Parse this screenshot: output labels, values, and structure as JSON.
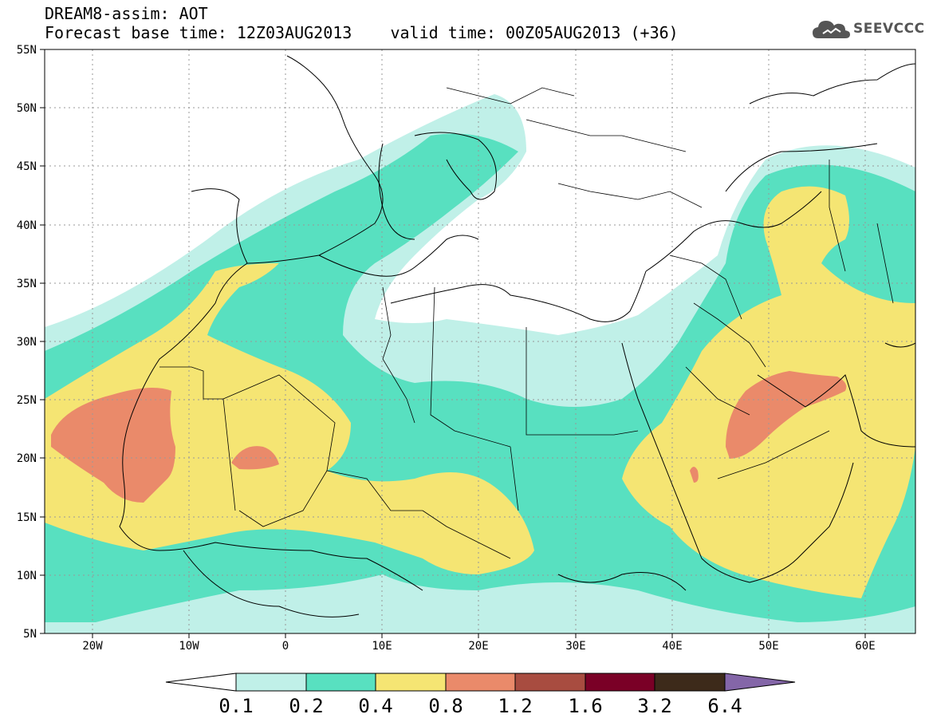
{
  "title": {
    "line1": "DREAM8-assim: AOT",
    "line2": "Forecast base time: 12Z03AUG2013    valid time: 00Z05AUG2013 (+36)"
  },
  "logo": {
    "text": "SEEVCCC",
    "icon": "cloud-logo-icon"
  },
  "map": {
    "lon_range": [
      -25,
      65
    ],
    "lat_range": [
      5,
      55
    ],
    "lat_ticks": [
      "55N",
      "50N",
      "45N",
      "40N",
      "35N",
      "30N",
      "25N",
      "20N",
      "15N",
      "10N",
      "5N"
    ],
    "lon_ticks": [
      "20W",
      "10W",
      "0",
      "10E",
      "20E",
      "30E",
      "40E",
      "50E",
      "60E"
    ],
    "grid": true
  },
  "colorbar": {
    "labels": [
      "0.1",
      "0.2",
      "0.4",
      "0.8",
      "1.2",
      "1.6",
      "3.2",
      "6.4"
    ],
    "colors": [
      "#ffffff",
      "#c0f0e8",
      "#58e0c0",
      "#f5e573",
      "#ea8a6a",
      "#a84c40",
      "#7a0026",
      "#3d2a1a",
      "#8466a8"
    ]
  }
}
